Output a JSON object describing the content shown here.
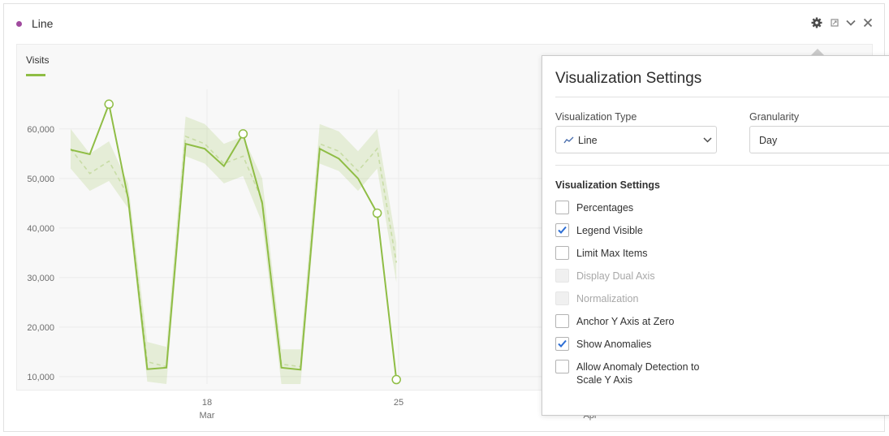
{
  "panel": {
    "title": "Line",
    "title_dot_color": "#a04a9e"
  },
  "header_icons": [
    "gear-icon",
    "resize-icon",
    "chevron-down-icon",
    "close-icon"
  ],
  "legend": {
    "label": "Visits",
    "color": "#8fbd45"
  },
  "chart_data": {
    "type": "line",
    "ylim": [
      8500,
      68000
    ],
    "y_ticks": [
      "10,000",
      "20,000",
      "30,000",
      "40,000",
      "50,000",
      "60,000"
    ],
    "x_ticks": [
      {
        "day": "18",
        "month": "Mar"
      },
      {
        "day": "25",
        "month": ""
      },
      {
        "day": "",
        "month": "Apr"
      }
    ],
    "series": [
      {
        "name": "Visits",
        "color": "#8fbd45",
        "values": [
          55800,
          54900,
          65000,
          46000,
          11500,
          11800,
          57000,
          56000,
          52500,
          59000,
          45000,
          11800,
          11400,
          56000,
          54000,
          50000,
          43000,
          9400
        ]
      }
    ],
    "expected": [
      56000,
      51000,
      53500,
      46500,
      13000,
      12000,
      58500,
      57000,
      53000,
      54500,
      45500,
      12500,
      12000,
      57000,
      55500,
      51500,
      56000,
      33000
    ],
    "band_upper": [
      60000,
      55000,
      57500,
      49000,
      17000,
      16000,
      62500,
      61000,
      57000,
      58500,
      50000,
      15500,
      15500,
      61000,
      59500,
      55500,
      60000,
      37000
    ],
    "band_lower": [
      52000,
      47500,
      49500,
      44000,
      9000,
      8500,
      54500,
      53000,
      49000,
      50500,
      41000,
      8500,
      8500,
      53000,
      51500,
      47500,
      52000,
      29000
    ],
    "anomaly_indices": [
      2,
      9,
      16,
      17
    ]
  },
  "settings": {
    "title": "Visualization Settings",
    "viz_type_label": "Visualization Type",
    "viz_type_value": "Line",
    "granularity_label": "Granularity",
    "granularity_value": "Day",
    "section_label": "Visualization Settings",
    "options": [
      {
        "label": "Percentages",
        "checked": false,
        "disabled": false
      },
      {
        "label": "Legend Visible",
        "checked": true,
        "disabled": false
      },
      {
        "label": "Limit Max Items",
        "checked": false,
        "disabled": false
      },
      {
        "label": "Display Dual Axis",
        "checked": false,
        "disabled": true
      },
      {
        "label": "Normalization",
        "checked": false,
        "disabled": true
      },
      {
        "label": "Anchor Y Axis at Zero",
        "checked": false,
        "disabled": false
      },
      {
        "label": "Show Anomalies",
        "checked": true,
        "disabled": false
      },
      {
        "label": "Allow Anomaly Detection to Scale Y Axis",
        "checked": false,
        "disabled": false
      }
    ],
    "check_color": "#2d6ed4"
  }
}
